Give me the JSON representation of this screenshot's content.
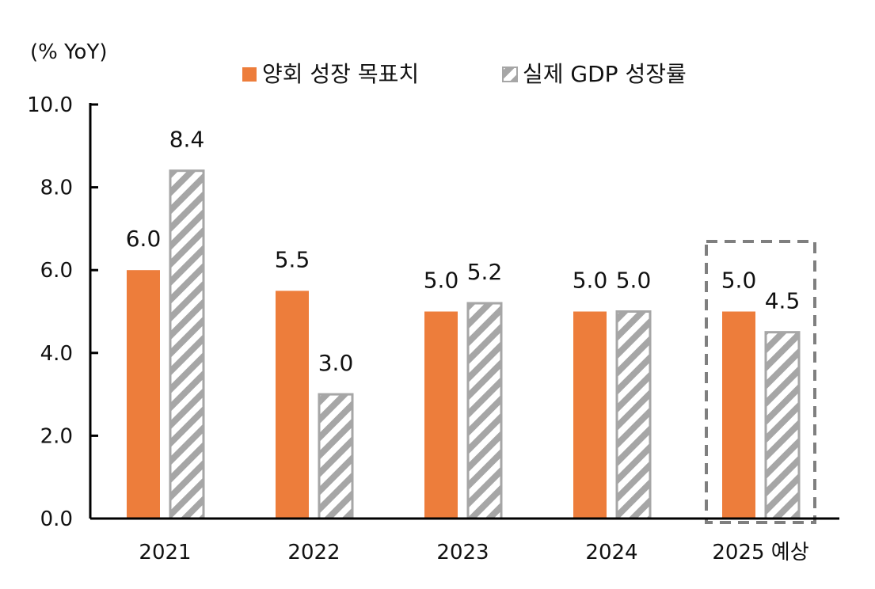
{
  "chart_data": {
    "type": "bar",
    "unit_label": "(% YoY)",
    "categories": [
      "2021",
      "2022",
      "2023",
      "2024",
      "2025 예상"
    ],
    "series": [
      {
        "name": "양회 성장 목표치",
        "values": [
          6.0,
          5.5,
          5.0,
          5.0,
          5.0
        ],
        "color": "#ED7D3B",
        "pattern": "solid"
      },
      {
        "name": "실제 GDP 성장률",
        "values": [
          8.4,
          3.0,
          5.2,
          5.0,
          4.5
        ],
        "color": "#A6A6A6",
        "pattern": "diagonal-hatch"
      }
    ],
    "data_labels": [
      [
        "6.0",
        "5.5",
        "5.0",
        "5.0",
        "5.0"
      ],
      [
        "8.4",
        "3.0",
        "5.2",
        "5.0",
        "4.5"
      ]
    ],
    "y_ticks": [
      "0.0",
      "2.0",
      "4.0",
      "6.0",
      "8.0",
      "10.0"
    ],
    "ylim": [
      0,
      10
    ],
    "grid": false,
    "legend_position": "top",
    "highlight_category": "2025 예상",
    "highlight_style": "dashed-box",
    "highlight_color": "#7F7F7F"
  }
}
